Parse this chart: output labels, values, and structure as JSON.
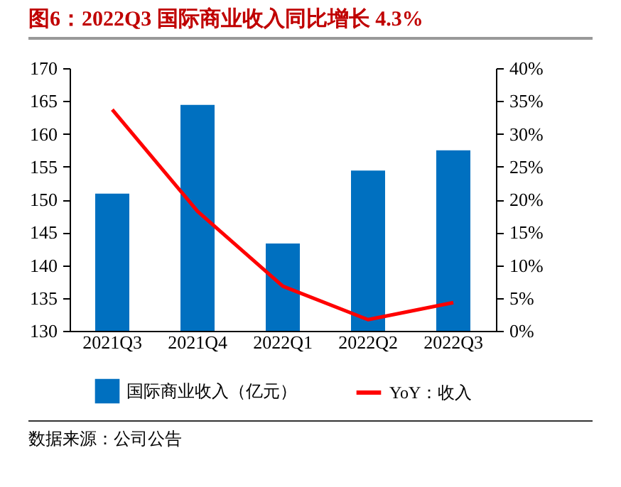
{
  "chart_data": {
    "type": "bar",
    "title": "图6：2022Q3 国际商业收入同比增长 4.3%",
    "categories": [
      "2021Q3",
      "2021Q4",
      "2022Q1",
      "2022Q2",
      "2022Q3"
    ],
    "series": [
      {
        "name": "国际商业收入（亿元）",
        "color": "#0070c0",
        "values": [
          150.9,
          164.4,
          143.3,
          154.4,
          157.5
        ]
      },
      {
        "name": "YoY：收入",
        "type": "line",
        "axis": "y2",
        "color": "#ff0000",
        "values": [
          33.7,
          18.2,
          6.8,
          1.7,
          4.3
        ]
      }
    ],
    "ylim": [
      130,
      170
    ],
    "yticks": [
      130,
      135,
      140,
      145,
      150,
      155,
      160,
      165,
      170
    ],
    "y2lim": [
      0,
      40
    ],
    "y2ticks": [
      {
        "value": 0,
        "label": "0%"
      },
      {
        "value": 5,
        "label": "5%"
      },
      {
        "value": 10,
        "label": "10%"
      },
      {
        "value": 15,
        "label": "15%"
      },
      {
        "value": 20,
        "label": "20%"
      },
      {
        "value": 25,
        "label": "25%"
      },
      {
        "value": 30,
        "label": "30%"
      },
      {
        "value": 35,
        "label": "35%"
      },
      {
        "value": 40,
        "label": "40%"
      }
    ],
    "legend": "bottom",
    "grid": false,
    "annotations": [
      "数据来源：公司公告"
    ]
  }
}
